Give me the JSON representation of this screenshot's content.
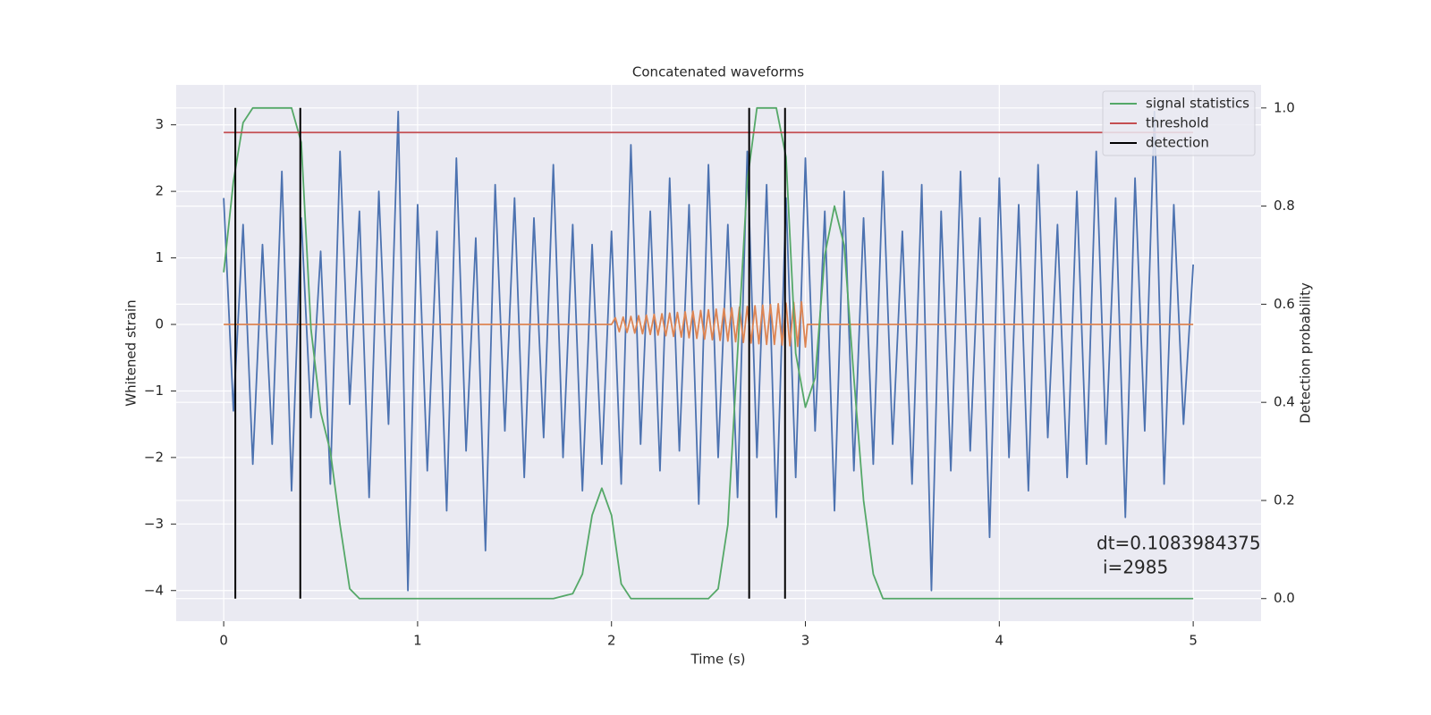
{
  "chart_data": {
    "type": "line",
    "title": "Concatenated waveforms",
    "xlabel": "Time (s)",
    "ylabel": "Whitened strain",
    "y2label": "Detection probability",
    "xlim": [
      -0.245,
      5.35
    ],
    "ylim": [
      -4.46,
      3.6
    ],
    "y2lim": [
      -0.046,
      1.047
    ],
    "xticks": [
      0,
      1,
      2,
      3,
      4,
      5
    ],
    "yticks": [
      {
        "value": -4,
        "label": "−4"
      },
      {
        "value": -3,
        "label": "−3"
      },
      {
        "value": -2,
        "label": "−2"
      },
      {
        "value": -1,
        "label": "−1"
      },
      0,
      1,
      2,
      3
    ],
    "y2ticks": [
      {
        "value": 0,
        "label": "0.0"
      },
      {
        "value": 0.2,
        "label": "0.2"
      },
      {
        "value": 0.4,
        "label": "0.4"
      },
      {
        "value": 0.6,
        "label": "0.6"
      },
      {
        "value": 0.8,
        "label": "0.8"
      },
      {
        "value": 1,
        "label": "1.0"
      }
    ],
    "grid": true,
    "legend": "upper right",
    "series": [
      {
        "color": "#4c72b0",
        "x": [
          0,
          0.05,
          0.1,
          0.15,
          0.2,
          0.25,
          0.3,
          0.35,
          0.4,
          0.45,
          0.5,
          0.55,
          0.6,
          0.65,
          0.7,
          0.75,
          0.8,
          0.85,
          0.9,
          0.95,
          1,
          1.05,
          1.1,
          1.15,
          1.2,
          1.25,
          1.3,
          1.35,
          1.4,
          1.45,
          1.5,
          1.55,
          1.6,
          1.65,
          1.7,
          1.75,
          1.8,
          1.85,
          1.9,
          1.95,
          2,
          2.05,
          2.1,
          2.15,
          2.2,
          2.25,
          2.3,
          2.35,
          2.4,
          2.45,
          2.5,
          2.55,
          2.6,
          2.65,
          2.7,
          2.75,
          2.8,
          2.85,
          2.9,
          2.95,
          3,
          3.05,
          3.1,
          3.15,
          3.2,
          3.25,
          3.3,
          3.35,
          3.4,
          3.45,
          3.5,
          3.55,
          3.6,
          3.65,
          3.7,
          3.75,
          3.8,
          3.85,
          3.9,
          3.95,
          4,
          4.05,
          4.1,
          4.15,
          4.2,
          4.25,
          4.3,
          4.35,
          4.4,
          4.45,
          4.5,
          4.55,
          4.6,
          4.65,
          4.7,
          4.75,
          4.8,
          4.85,
          4.9,
          4.95,
          5
        ],
        "values": [
          1.9,
          -1.3,
          1.5,
          -2.1,
          1.2,
          -1.8,
          2.3,
          -2.5,
          1.6,
          -1.4,
          1.1,
          -2.4,
          2.6,
          -1.2,
          1.7,
          -2.6,
          2.0,
          -1.5,
          3.2,
          -4.0,
          1.8,
          -2.2,
          1.4,
          -2.8,
          2.5,
          -1.9,
          1.3,
          -3.4,
          2.1,
          -1.6,
          1.9,
          -2.3,
          1.6,
          -1.7,
          2.4,
          -2.0,
          1.5,
          -2.5,
          1.2,
          -2.1,
          1.4,
          -2.4,
          2.7,
          -1.8,
          1.7,
          -2.2,
          2.2,
          -1.9,
          1.8,
          -2.7,
          2.4,
          -2.0,
          1.5,
          -2.6,
          2.6,
          -2.0,
          2.1,
          -2.9,
          1.9,
          -2.3,
          2.5,
          -1.6,
          1.7,
          -2.8,
          2.0,
          -2.2,
          1.6,
          -2.1,
          2.3,
          -1.8,
          1.4,
          -2.4,
          2.1,
          -4.0,
          1.7,
          -2.2,
          2.3,
          -1.9,
          1.6,
          -3.2,
          2.2,
          -2.0,
          1.8,
          -2.5,
          2.4,
          -1.7,
          1.5,
          -2.3,
          2.0,
          -2.1,
          2.6,
          -1.8,
          1.9,
          -2.9,
          2.2,
          -1.6,
          3.2,
          -2.4,
          1.8,
          -1.5,
          0.9
        ]
      },
      {
        "color": "#dd8452",
        "x": [
          0,
          2.0,
          2.02,
          2.04,
          2.06,
          2.08,
          2.1,
          2.12,
          2.14,
          2.16,
          2.18,
          2.2,
          2.22,
          2.24,
          2.26,
          2.28,
          2.3,
          2.32,
          2.34,
          2.36,
          2.38,
          2.4,
          2.42,
          2.44,
          2.46,
          2.48,
          2.5,
          2.52,
          2.54,
          2.56,
          2.58,
          2.6,
          2.62,
          2.64,
          2.66,
          2.68,
          2.7,
          2.72,
          2.74,
          2.76,
          2.78,
          2.8,
          2.82,
          2.84,
          2.86,
          2.88,
          2.9,
          2.92,
          2.94,
          2.96,
          2.98,
          3.0,
          3.01,
          5
        ],
        "values": [
          0,
          0,
          0.1,
          -0.11,
          0.11,
          -0.12,
          0.12,
          -0.13,
          0.13,
          -0.14,
          0.14,
          -0.15,
          0.15,
          -0.16,
          0.16,
          -0.17,
          0.17,
          -0.18,
          0.18,
          -0.19,
          0.19,
          -0.2,
          0.2,
          -0.21,
          0.21,
          -0.22,
          0.22,
          -0.23,
          0.23,
          -0.24,
          0.24,
          -0.25,
          0.25,
          -0.26,
          0.26,
          -0.27,
          0.27,
          -0.28,
          0.28,
          -0.29,
          0.29,
          -0.3,
          0.3,
          -0.3,
          0.31,
          -0.31,
          0.32,
          -0.32,
          0.33,
          -0.33,
          0.34,
          -0.34,
          0,
          0
        ]
      },
      {
        "name": "signal statistics",
        "color": "#55a868",
        "axis": "y2",
        "x": [
          0,
          0.05,
          0.1,
          0.15,
          0.35,
          0.4,
          0.45,
          0.5,
          0.55,
          0.6,
          0.65,
          0.7,
          1.7,
          1.8,
          1.85,
          1.9,
          1.95,
          2.0,
          2.05,
          2.1,
          2.5,
          2.55,
          2.6,
          2.65,
          2.7,
          2.75,
          2.85,
          2.9,
          2.95,
          3.0,
          3.05,
          3.1,
          3.15,
          3.2,
          3.25,
          3.3,
          3.35,
          3.4,
          5
        ],
        "values": [
          0.665,
          0.85,
          0.97,
          1.0,
          1.0,
          0.93,
          0.55,
          0.38,
          0.3,
          0.15,
          0.02,
          0,
          0,
          0.01,
          0.05,
          0.17,
          0.225,
          0.17,
          0.03,
          0,
          0,
          0.02,
          0.15,
          0.5,
          0.85,
          1.0,
          1.0,
          0.9,
          0.5,
          0.39,
          0.45,
          0.7,
          0.8,
          0.72,
          0.45,
          0.2,
          0.05,
          0,
          0
        ]
      },
      {
        "name": "threshold",
        "color": "#c44e52",
        "axis": "y2",
        "x": [
          0,
          5
        ],
        "values": [
          0.95,
          0.95
        ]
      }
    ],
    "vlines": {
      "name": "detection",
      "color": "#000000",
      "axis": "y2",
      "x": [
        0.06,
        0.395,
        2.71,
        2.895
      ],
      "ymin": 0,
      "ymax": 1
    },
    "annotations": [
      "dt=0.1083984375",
      "i=2985"
    ]
  }
}
